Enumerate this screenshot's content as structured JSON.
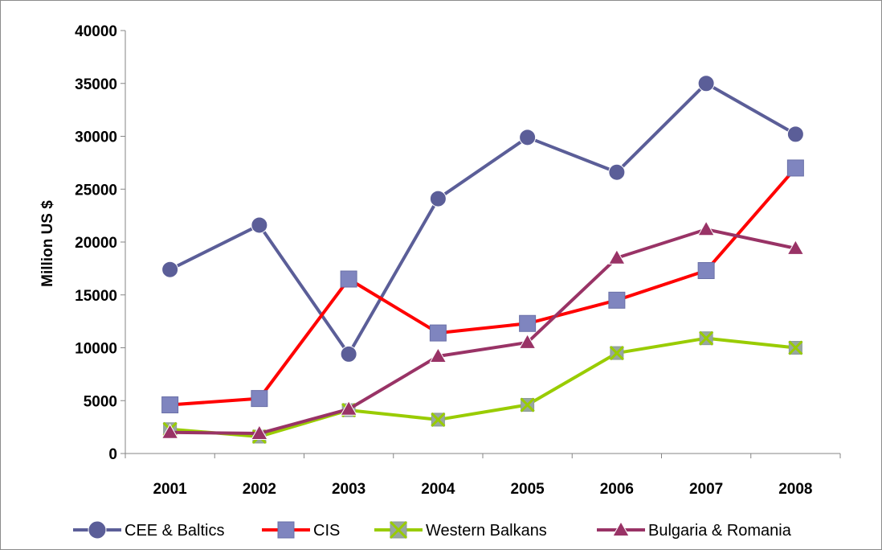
{
  "chart_data": {
    "type": "line",
    "title": "",
    "xlabel": "",
    "ylabel": "Million US $",
    "categories": [
      "2001",
      "2002",
      "2003",
      "2004",
      "2005",
      "2006",
      "2007",
      "2008"
    ],
    "ylim": [
      0,
      40000
    ],
    "yticks": [
      "0",
      "5000",
      "10000",
      "15000",
      "20000",
      "25000",
      "30000",
      "35000",
      "40000"
    ],
    "grid": false,
    "legend_position": "bottom",
    "series": [
      {
        "name": "CEE & Baltics",
        "color": "#5b5e98",
        "marker": "circle",
        "values": [
          17400,
          21600,
          9400,
          24100,
          29900,
          26600,
          35000,
          30200
        ]
      },
      {
        "name": "CIS",
        "color": "#ff0000",
        "marker": "square",
        "marker_color": "#7f85bf",
        "values": [
          4600,
          5200,
          16500,
          11400,
          12300,
          14500,
          17300,
          27000
        ]
      },
      {
        "name": "Western Balkans",
        "color": "#99cc00",
        "marker": "x-square",
        "marker_color": "#97a6a0",
        "values": [
          2300,
          1600,
          4100,
          3200,
          4600,
          9500,
          10900,
          10000
        ]
      },
      {
        "name": "Bulgaria & Romania",
        "color": "#993366",
        "marker": "triangle",
        "values": [
          2000,
          1900,
          4200,
          9200,
          10500,
          18500,
          21200,
          19400
        ]
      }
    ]
  }
}
